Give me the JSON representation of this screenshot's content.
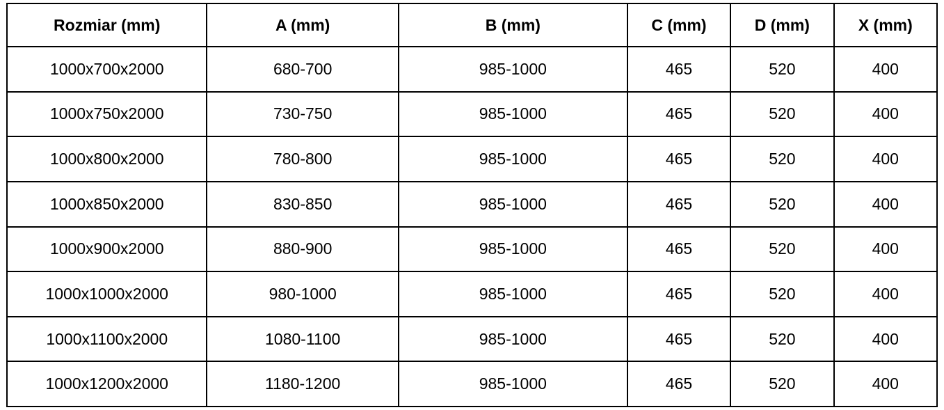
{
  "table": {
    "columns": [
      "Rozmiar (mm)",
      "A (mm)",
      "B (mm)",
      "C (mm)",
      "D (mm)",
      "X (mm)"
    ],
    "rows": [
      [
        "1000x700x2000",
        "680-700",
        "985-1000",
        "465",
        "520",
        "400"
      ],
      [
        "1000x750x2000",
        "730-750",
        "985-1000",
        "465",
        "520",
        "400"
      ],
      [
        "1000x800x2000",
        "780-800",
        "985-1000",
        "465",
        "520",
        "400"
      ],
      [
        "1000x850x2000",
        "830-850",
        "985-1000",
        "465",
        "520",
        "400"
      ],
      [
        "1000x900x2000",
        "880-900",
        "985-1000",
        "465",
        "520",
        "400"
      ],
      [
        "1000x1000x2000",
        "980-1000",
        "985-1000",
        "465",
        "520",
        "400"
      ],
      [
        "1000x1100x2000",
        "1080-1100",
        "985-1000",
        "465",
        "520",
        "400"
      ],
      [
        "1000x1200x2000",
        "1180-1200",
        "985-1000",
        "465",
        "520",
        "400"
      ]
    ],
    "colors": {
      "border": "#000000",
      "background": "#ffffff",
      "text": "#000000"
    }
  }
}
